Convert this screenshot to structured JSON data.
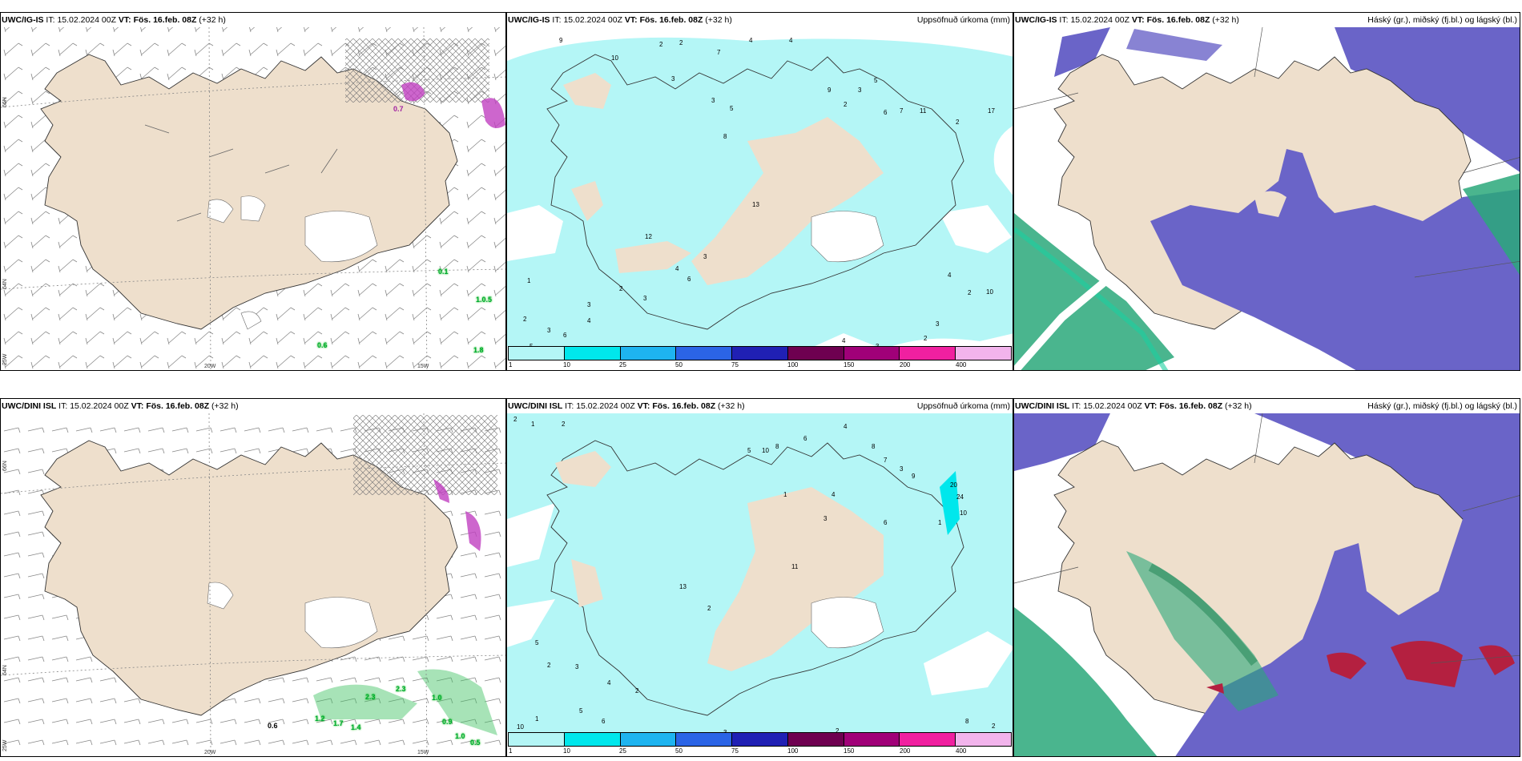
{
  "panels": [
    {
      "row": "top",
      "wind": {
        "model": "UWC/IG-IS",
        "it_label": "IT:",
        "it": "15.02.2024 00Z",
        "vt_label": "VT:",
        "vt": "Fös. 16.feb. 08Z",
        "lead": "(+32 h)",
        "field_title": "",
        "lat_labels": [
          "66N",
          "64N",
          "25W"
        ],
        "lon_labels": [
          "20W",
          "15W"
        ],
        "values": [
          "0.1",
          "1.0.5",
          "0.6",
          "1.8",
          "0.7"
        ]
      },
      "precip": {
        "model": "UWC/IG-IS",
        "it_label": "IT:",
        "it": "15.02.2024 00Z",
        "vt_label": "VT:",
        "vt": "Fös. 16.feb. 08Z",
        "lead": "(+32 h)",
        "field_title": "Uppsöfnuð úrkoma (mm)",
        "values": [
          "9",
          "2",
          "2",
          "7",
          "4",
          "4",
          "10",
          "3",
          "3",
          "5",
          "8",
          "9",
          "2",
          "3",
          "5",
          "6",
          "7",
          "17",
          "2",
          "11",
          "13",
          "12",
          "4",
          "6",
          "3",
          "2",
          "3",
          "3",
          "4",
          "1",
          "2",
          "3",
          "6",
          "5",
          "4",
          "3",
          "2",
          "10",
          "4",
          "2",
          "3"
        ]
      },
      "clouds": {
        "model": "UWC/IG-IS",
        "it_label": "IT:",
        "it": "15.02.2024 00Z",
        "vt_label": "VT:",
        "vt": "Fös. 16.feb. 08Z",
        "lead": "(+32 h)",
        "field_title": "Háský (gr.), miðský (fj.bl.) og lágský (bl.)"
      }
    },
    {
      "row": "bottom",
      "wind": {
        "model": "UWC/DINI ISL",
        "it_label": "IT:",
        "it": "15.02.2024 00Z",
        "vt_label": "VT:",
        "vt": "Fös. 16.feb. 08Z",
        "lead": "(+32 h)",
        "field_title": "",
        "lat_labels": [
          "66N",
          "64N",
          "25W"
        ],
        "lon_labels": [
          "20W",
          "15W"
        ],
        "values": [
          "0.6",
          "1.2",
          "1.7",
          "1.4",
          "2.3",
          "2.3",
          "1.0",
          "0.9",
          "1.0",
          "0.5"
        ]
      },
      "precip": {
        "model": "UWC/DINI ISL",
        "it_label": "IT:",
        "it": "15.02.2024 00Z",
        "vt_label": "VT:",
        "vt": "Fös. 16.feb. 08Z",
        "lead": "(+32 h)",
        "field_title": "Uppsöfnuð úrkoma (mm)",
        "values": [
          "2",
          "1",
          "2",
          "6",
          "4",
          "8",
          "7",
          "3",
          "5",
          "10",
          "8",
          "11",
          "13",
          "2",
          "1",
          "4",
          "3",
          "6",
          "9",
          "20",
          "24",
          "10",
          "1",
          "5",
          "2",
          "3",
          "4",
          "2",
          "10",
          "5",
          "6",
          "1",
          "3",
          "2",
          "8",
          "2"
        ]
      },
      "clouds": {
        "model": "UWC/DINI ISL",
        "it_label": "IT:",
        "it": "15.02.2024 00Z",
        "vt_label": "VT:",
        "vt": "Fös. 16.feb. 08Z",
        "lead": "(+32 h)",
        "field_title": "Háský (gr.), miðský (fj.bl.) og lágský (bl.)"
      }
    }
  ],
  "colorbar": {
    "labels": [
      "1",
      "10",
      "25",
      "50",
      "75",
      "100",
      "150",
      "200",
      "400"
    ],
    "colors": [
      "#b4f6f6",
      "#00e7ec",
      "#1eb4f0",
      "#2b64e6",
      "#2020b4",
      "#6e0050",
      "#a00078",
      "#f020a0",
      "#f2b4ec"
    ]
  },
  "palette": {
    "land": "#eedfcc",
    "sea": "#ffffff",
    "precip_light": "#b4f6f6",
    "high_cloud": "#2aa87a",
    "mid_cloud": "#6a64c8",
    "low_cloud": "#b42040",
    "snow_magenta": "#c040c0"
  }
}
